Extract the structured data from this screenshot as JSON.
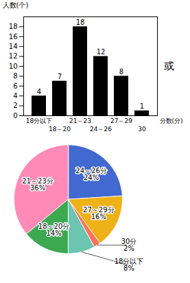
{
  "chart_data": [
    {
      "type": "bar",
      "categories": [
        "18分以下",
        "18～20",
        "21～23",
        "24～26",
        "27～29",
        "30"
      ],
      "values": [
        4,
        7,
        18,
        12,
        8,
        1
      ],
      "xlabel": "分数(分)",
      "ylabel": "人数(个)",
      "ylim": [
        0,
        20
      ],
      "yticks": [
        0,
        2,
        4,
        6,
        8,
        10,
        12,
        14,
        16,
        18
      ],
      "data_labels": true,
      "annotations": [
        "或"
      ]
    },
    {
      "type": "pie",
      "categories": [
        "24～26分",
        "27～29分",
        "30分",
        "18分以下",
        "18～20分",
        "21～23分"
      ],
      "values": [
        24,
        16,
        2,
        8,
        14,
        36
      ],
      "value_labels": [
        "24%",
        "16%",
        "2%",
        "8%",
        "14%",
        "36%"
      ],
      "data_labels": true
    }
  ]
}
